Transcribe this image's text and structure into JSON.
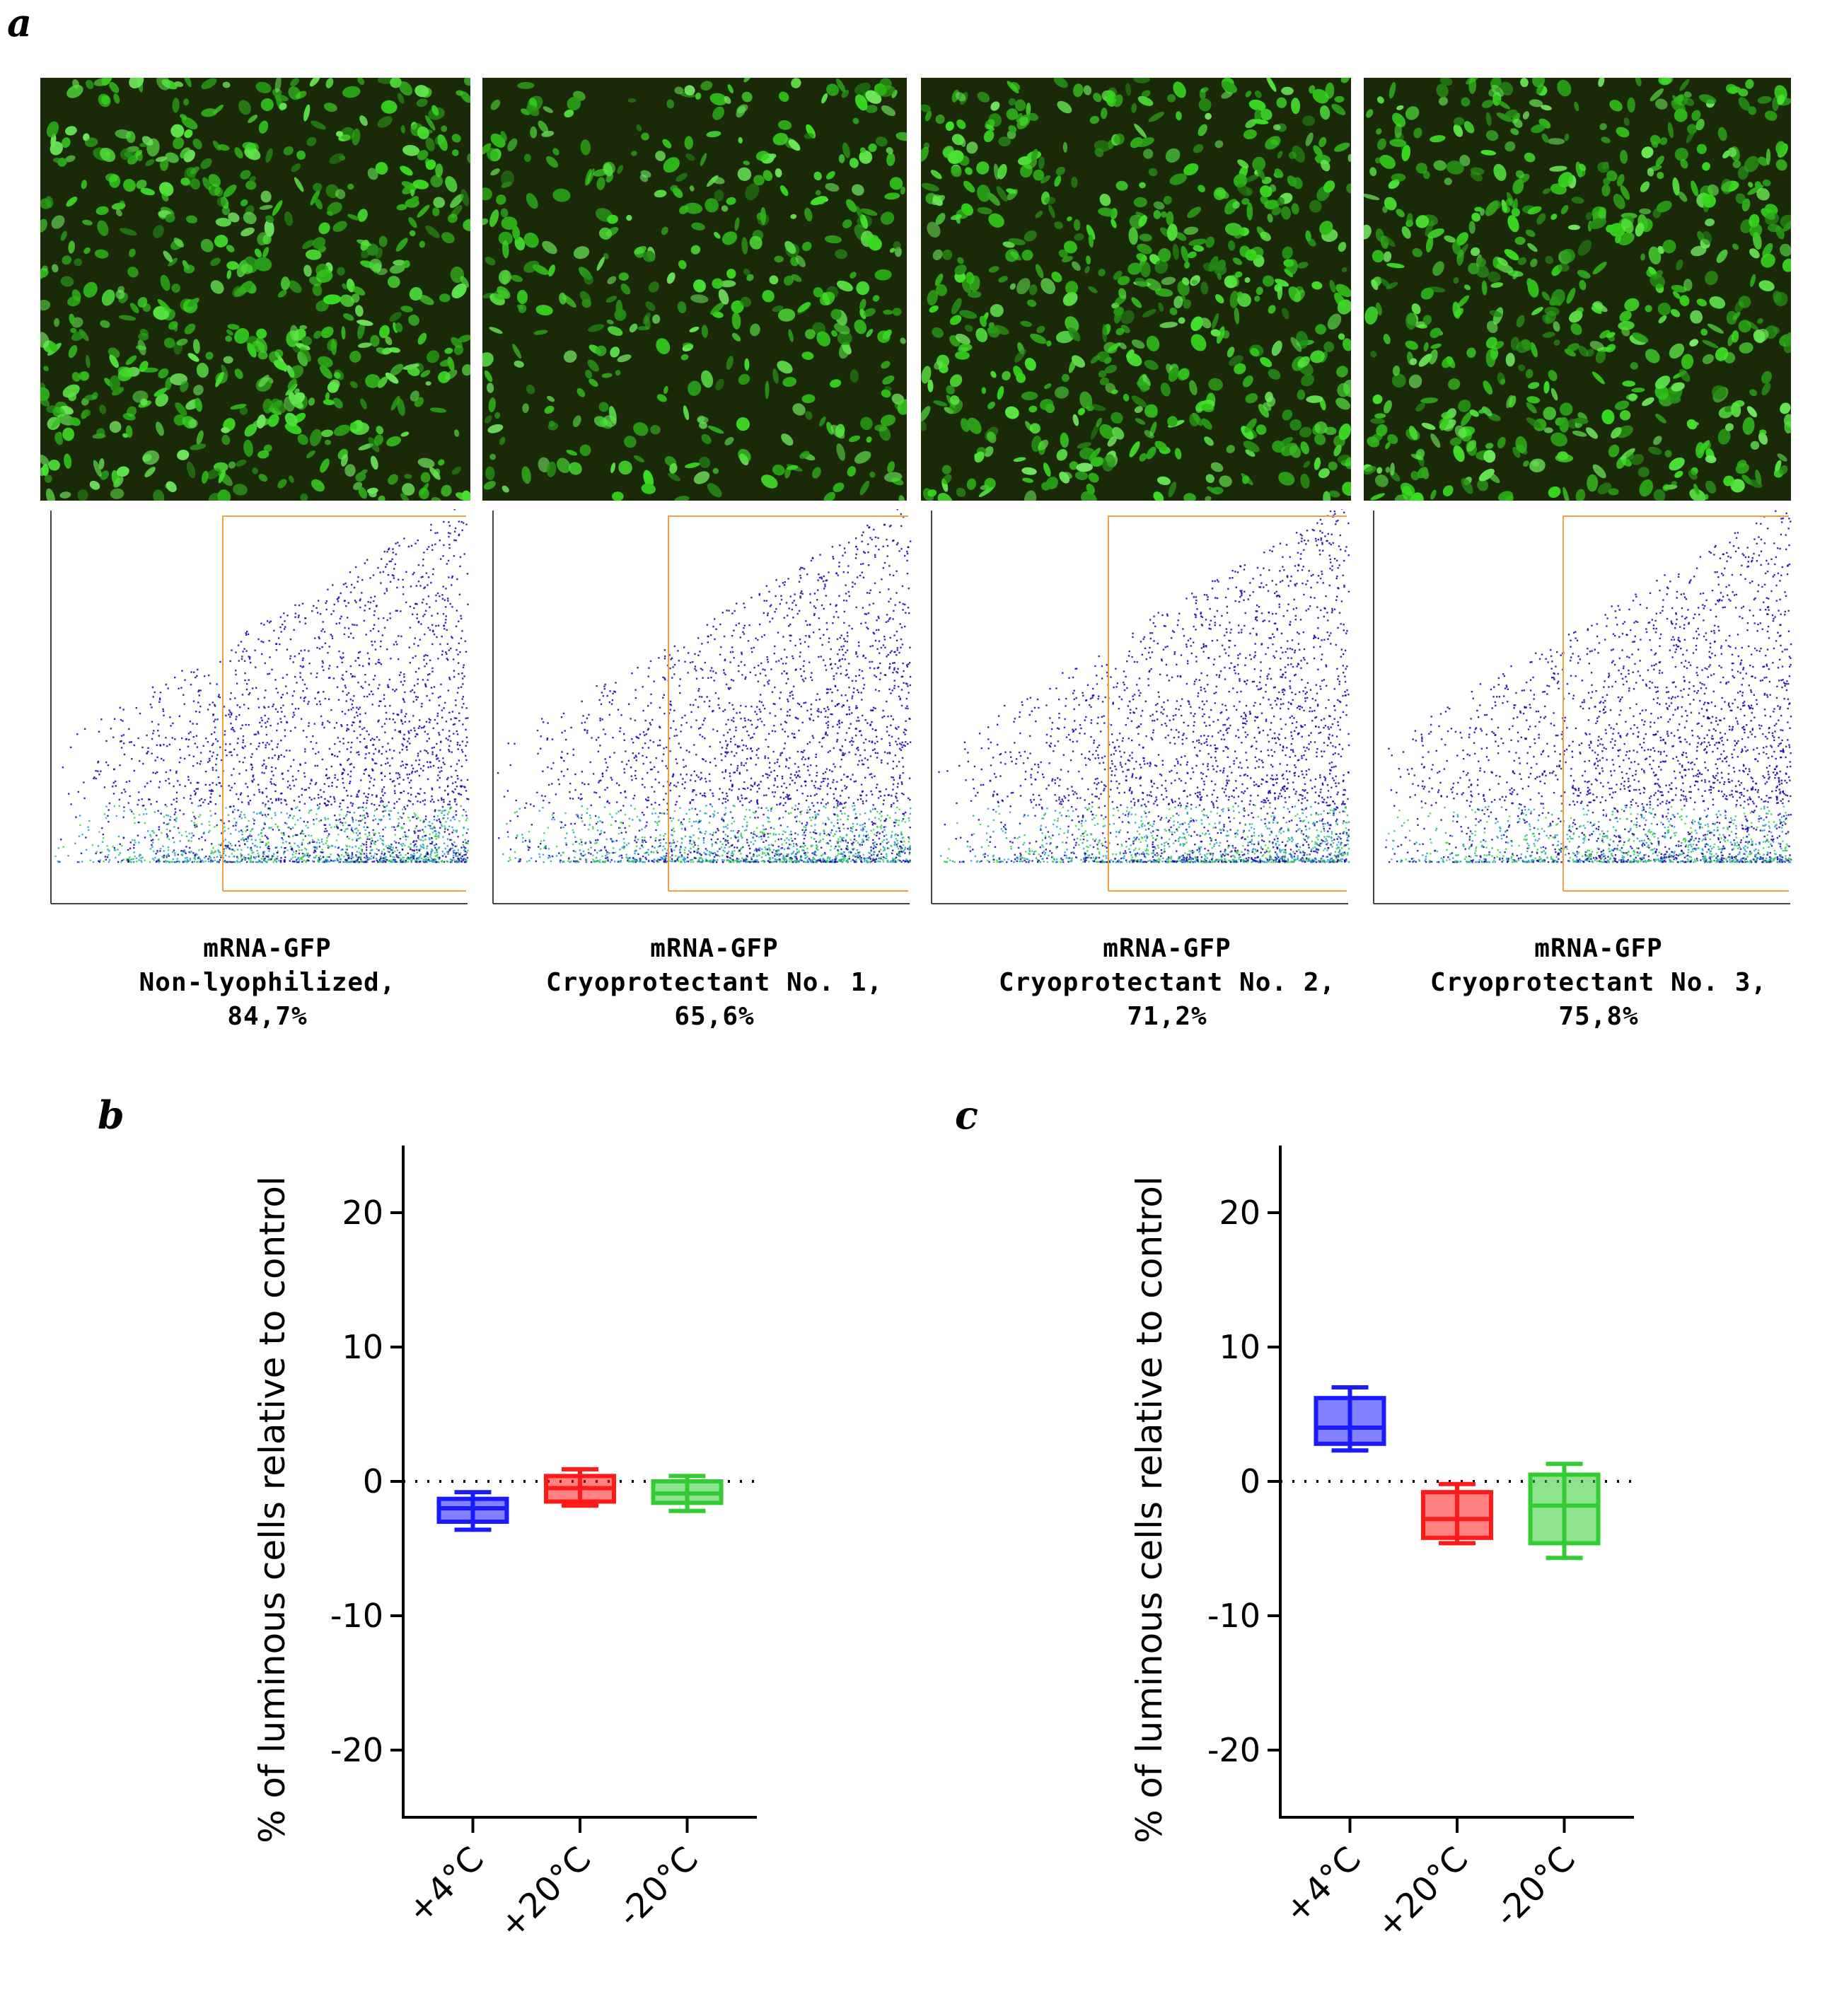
{
  "panels": {
    "a": "a",
    "b": "b",
    "c": "c"
  },
  "samples": [
    {
      "line1": "mRNA-GFP",
      "line2": "Non-lyophilized,",
      "line3": "84,7%"
    },
    {
      "line1": "mRNA-GFP",
      "line2": "Cryoprotectant No. 1,",
      "line3": "65,6%"
    },
    {
      "line1": "mRNA-GFP",
      "line2": "Cryoprotectant No. 2,",
      "line3": "71,2%"
    },
    {
      "line1": "mRNA-GFP",
      "line2": "Cryoprotectant No. 3,",
      "line3": "75,8%"
    }
  ],
  "colors": {
    "micro_bg": "#1a2a08",
    "cell": "#3fd12c",
    "flow_low": "#1d00a8",
    "flow_mid": "#22a0c8",
    "flow_high": "#35d24a",
    "gate": "#f0a040",
    "blue": "#1a1aff",
    "red": "#ff1a1a",
    "green": "#33cc33"
  },
  "chart_data": [
    {
      "panel": "b",
      "type": "box",
      "ylabel": "% of luminous cells relative to control",
      "categories": [
        "+4°C",
        "+20°C",
        "-20°C"
      ],
      "yticks": [
        20,
        10,
        0,
        -10,
        -20
      ],
      "ylim": [
        -25,
        25
      ],
      "reference_line": 0,
      "series": [
        {
          "category": "+4°C",
          "color": "#1a1aff",
          "min": -3.6,
          "q1": -3.0,
          "median": -2.0,
          "q3": -1.3,
          "max": -0.8
        },
        {
          "category": "+20°C",
          "color": "#ff1a1a",
          "min": -1.8,
          "q1": -1.5,
          "median": -0.5,
          "q3": 0.4,
          "max": 0.9
        },
        {
          "category": "-20°C",
          "color": "#33cc33",
          "min": -2.2,
          "q1": -1.6,
          "median": -0.9,
          "q3": 0.0,
          "max": 0.4
        }
      ]
    },
    {
      "panel": "c",
      "type": "box",
      "ylabel": "% of luminous cells relative to control",
      "categories": [
        "+4°C",
        "+20°C",
        "-20°C"
      ],
      "yticks": [
        20,
        10,
        0,
        -10,
        -20
      ],
      "ylim": [
        -25,
        25
      ],
      "reference_line": 0,
      "series": [
        {
          "category": "+4°C",
          "color": "#1a1aff",
          "min": 2.3,
          "q1": 2.8,
          "median": 4.0,
          "q3": 6.2,
          "max": 7.0
        },
        {
          "category": "+20°C",
          "color": "#ff1a1a",
          "min": -4.6,
          "q1": -4.2,
          "median": -2.8,
          "q3": -0.8,
          "max": -0.2
        },
        {
          "category": "-20°C",
          "color": "#33cc33",
          "min": -5.7,
          "q1": -4.6,
          "median": -1.8,
          "q3": 0.5,
          "max": 1.3
        }
      ]
    }
  ]
}
